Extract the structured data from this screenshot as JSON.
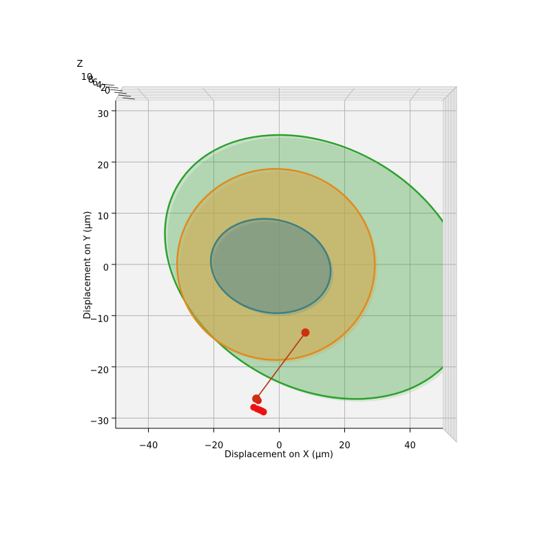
{
  "chart_data": {
    "type": "scatter",
    "projection": "3d-top-view",
    "title": "",
    "xlabel": "Displacement on X (µm)",
    "ylabel": "Displacement on Y (µm)",
    "zlabel": "Z",
    "xlim": [
      -50,
      50
    ],
    "ylim": [
      -32,
      32
    ],
    "x_ticks": [
      -40,
      -20,
      0,
      20,
      40
    ],
    "x_tick_labels": [
      "−40",
      "−20",
      "0",
      "20",
      "40"
    ],
    "y_ticks": [
      -30,
      -20,
      -10,
      0,
      10,
      20,
      30
    ],
    "y_tick_labels": [
      "−30",
      "−20",
      "−10",
      "0",
      "10",
      "20",
      "30"
    ],
    "z_tick_labels": [
      "10",
      "8",
      "6",
      "4",
      "2",
      "0"
    ],
    "grid": true,
    "pane_color": "#f2f2f2",
    "ellipses": [
      {
        "name": "",
        "center": [
          11.7,
          -0.5
        ],
        "semi_axes": [
          49.5,
          23.5
        ],
        "angle_deg": -30,
        "stroke": "#2ca02c",
        "fill": "#2ca02c",
        "fill_opacity": 0.22
      },
      {
        "name": "",
        "center": [
          -1.0,
          0.0
        ],
        "semi_axes": [
          29.2,
          19.3
        ],
        "angle_deg": 87,
        "stroke": "#e08a1e",
        "fill": "#d4a84a",
        "fill_opacity": 0.45
      },
      {
        "name": "",
        "center": [
          -2.6,
          -0.3
        ],
        "semi_axes": [
          14.2,
          11.8
        ],
        "angle_deg": 78,
        "stroke": "#3f7f7f",
        "fill": "#5f8f90",
        "fill_opacity": 0.45
      }
    ],
    "trajectory": {
      "color": "#b5401a",
      "points": [
        [
          8.0,
          -13.3
        ],
        [
          -7.0,
          -26.2
        ]
      ]
    },
    "end_markers": {
      "color": "#ee1111",
      "points": [
        [
          -7.8,
          -27.9
        ],
        [
          -6.8,
          -28.2
        ],
        [
          -6.0,
          -28.4
        ],
        [
          -5.3,
          -28.6
        ],
        [
          -4.8,
          -28.8
        ],
        [
          -6.4,
          -26.6
        ],
        [
          -7.2,
          -26.3
        ]
      ]
    },
    "key_points": {
      "color": "#cc3010",
      "points": [
        [
          8.0,
          -13.3
        ],
        [
          -7.0,
          -26.2
        ]
      ]
    }
  }
}
